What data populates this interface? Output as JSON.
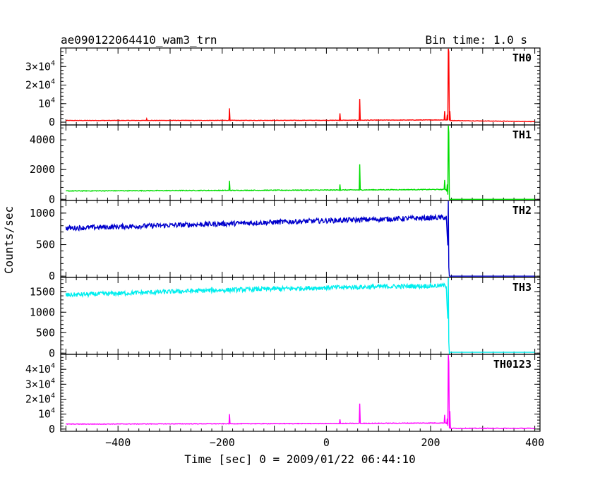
{
  "chart_data": {
    "type": "line",
    "title": "ae090122064410_wam3_trn",
    "subtitle": "Bin time: 1.0 s",
    "xlabel": "Time [sec] 0 = 2009/01/22 06:44:10",
    "ylabel": "Counts/sec",
    "xlim": [
      -510,
      410
    ],
    "x_ticks": [
      -400,
      -200,
      0,
      200,
      400
    ],
    "grid": false,
    "panels": [
      {
        "name": "TH0",
        "color": "#ff0000",
        "ylim": [
          -1500,
          40000
        ],
        "y_ticks": [
          {
            "v": 0,
            "base": "0",
            "exp": ""
          },
          {
            "v": 10000,
            "base": "10",
            "exp": "4"
          },
          {
            "v": 20000,
            "base": "2×10",
            "exp": "4"
          },
          {
            "v": 30000,
            "base": "3×10",
            "exp": "4"
          }
        ],
        "baseline": [
          [
            -500,
            900
          ],
          [
            0,
            1000
          ],
          [
            230,
            1200
          ],
          [
            236,
            900
          ],
          [
            400,
            300
          ]
        ],
        "noise": 120,
        "spikes": [
          [
            -345,
            1800
          ],
          [
            -186,
            7500
          ],
          [
            26,
            4800
          ],
          [
            64,
            12500
          ],
          [
            227,
            6000
          ],
          [
            232,
            4000
          ],
          [
            234,
            40000
          ],
          [
            235,
            38000
          ],
          [
            237,
            6000
          ]
        ]
      },
      {
        "name": "TH1",
        "color": "#00dd00",
        "ylim": [
          -80,
          5000
        ],
        "y_ticks": [
          {
            "v": 0,
            "base": "0",
            "exp": ""
          },
          {
            "v": 2000,
            "base": "2000",
            "exp": ""
          },
          {
            "v": 4000,
            "base": "4000",
            "exp": ""
          }
        ],
        "baseline": [
          [
            -500,
            560
          ],
          [
            0,
            620
          ],
          [
            230,
            660
          ],
          [
            236,
            0
          ],
          [
            400,
            0
          ]
        ],
        "noise": 25,
        "spikes": [
          [
            -186,
            1250
          ],
          [
            26,
            1000
          ],
          [
            64,
            2350
          ],
          [
            227,
            1300
          ],
          [
            232,
            1000
          ],
          [
            234,
            5000
          ],
          [
            235,
            4500
          ]
        ]
      },
      {
        "name": "TH2",
        "color": "#0000cc",
        "ylim": [
          -20,
          1200
        ],
        "y_ticks": [
          {
            "v": 0,
            "base": "0",
            "exp": ""
          },
          {
            "v": 500,
            "base": "500",
            "exp": ""
          },
          {
            "v": 1000,
            "base": "1000",
            "exp": ""
          }
        ],
        "baseline": [
          [
            -500,
            760
          ],
          [
            -200,
            830
          ],
          [
            0,
            880
          ],
          [
            230,
            930
          ],
          [
            236,
            0
          ],
          [
            400,
            0
          ]
        ],
        "noise": 40,
        "spikes": [
          [
            234,
            1200
          ]
        ]
      },
      {
        "name": "TH3",
        "color": "#00eeee",
        "ylim": [
          -30,
          1850
        ],
        "y_ticks": [
          {
            "v": 0,
            "base": "0",
            "exp": ""
          },
          {
            "v": 500,
            "base": "500",
            "exp": ""
          },
          {
            "v": 1000,
            "base": "1000",
            "exp": ""
          },
          {
            "v": 1500,
            "base": "1500",
            "exp": ""
          }
        ],
        "baseline": [
          [
            -500,
            1420
          ],
          [
            -200,
            1540
          ],
          [
            0,
            1600
          ],
          [
            230,
            1650
          ],
          [
            236,
            20
          ],
          [
            400,
            20
          ]
        ],
        "noise": 55,
        "spikes": [
          [
            234,
            1850
          ]
        ]
      },
      {
        "name": "TH0123",
        "color": "#ff00ff",
        "ylim": [
          -1500,
          50000
        ],
        "y_ticks": [
          {
            "v": 0,
            "base": "0",
            "exp": ""
          },
          {
            "v": 10000,
            "base": "10",
            "exp": "4"
          },
          {
            "v": 20000,
            "base": "2×10",
            "exp": "4"
          },
          {
            "v": 30000,
            "base": "3×10",
            "exp": "4"
          },
          {
            "v": 40000,
            "base": "4×10",
            "exp": "4"
          }
        ],
        "baseline": [
          [
            -500,
            3300
          ],
          [
            0,
            3700
          ],
          [
            230,
            4100
          ],
          [
            236,
            500
          ],
          [
            400,
            500
          ]
        ],
        "noise": 200,
        "spikes": [
          [
            -186,
            10000
          ],
          [
            26,
            6500
          ],
          [
            64,
            17000
          ],
          [
            227,
            9500
          ],
          [
            232,
            7000
          ],
          [
            234,
            50000
          ],
          [
            235,
            45000
          ],
          [
            237,
            12000
          ]
        ]
      }
    ]
  }
}
